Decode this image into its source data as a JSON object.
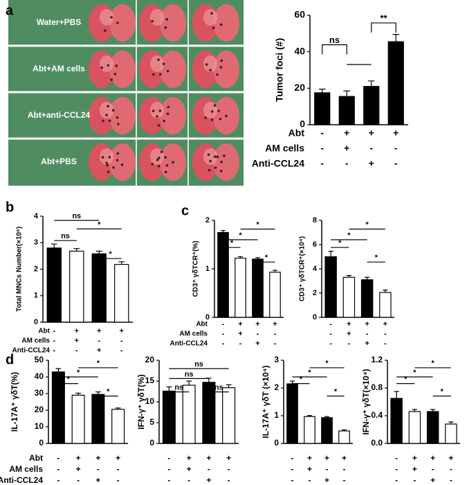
{
  "panel_labels": [
    "a",
    "b",
    "c",
    "d"
  ],
  "photo_labels": [
    "Water+PBS",
    "Abt+AM cells",
    "Abt+anti-CCL24",
    "Abt+PBS"
  ],
  "chart_data": [
    {
      "type": "bar",
      "ylabel": "Tumor foci (#)",
      "ylim": [
        0,
        60
      ],
      "yticks": [
        0,
        20,
        40,
        60
      ],
      "values": [
        17.5,
        15.5,
        21,
        45.5
      ],
      "errors": [
        2,
        3,
        3,
        4
      ],
      "colors": [
        "#000000",
        "#000000",
        "#000000",
        "#000000"
      ],
      "conditions": [
        {
          "name": "Abt",
          "signs": [
            "-",
            "+",
            "+",
            "+"
          ]
        },
        {
          "name": "AM cells",
          "signs": [
            "-",
            "+",
            "-",
            "-"
          ]
        },
        {
          "name": "Anti-CCL24",
          "signs": [
            "-",
            "-",
            "+",
            "-"
          ]
        }
      ],
      "annotations": [
        "ns",
        "**"
      ]
    },
    {
      "type": "bar",
      "ylabel": "Total MNCs Number(×10⁶)",
      "ylim": [
        0,
        4
      ],
      "yticks": [
        0,
        1,
        2,
        3,
        4
      ],
      "values": [
        2.8,
        2.68,
        2.58,
        2.18
      ],
      "errors": [
        0.15,
        0.1,
        0.1,
        0.1
      ],
      "colors": [
        "#000000",
        "#ffffff",
        "#000000",
        "#ffffff"
      ],
      "conditions": [
        {
          "name": "Abt",
          "signs": [
            "-",
            "+",
            "+",
            "+"
          ]
        },
        {
          "name": "AM cells",
          "signs": [
            "-",
            "+",
            "-",
            "-"
          ]
        },
        {
          "name": "Anti-CCL24",
          "signs": [
            "-",
            "-",
            "+",
            "-"
          ]
        }
      ],
      "annotations": [
        "ns",
        "*",
        "ns",
        "*"
      ]
    },
    {
      "type": "bar",
      "ylabel": "CD3⁺ γδTCR⁺(%)",
      "ylim": [
        0,
        2
      ],
      "yticks": [
        0,
        1,
        2
      ],
      "values": [
        1.75,
        1.22,
        1.2,
        0.93
      ],
      "errors": [
        0.04,
        0.03,
        0.03,
        0.04
      ],
      "colors": [
        "#000000",
        "#ffffff",
        "#000000",
        "#ffffff"
      ],
      "conditions": [
        {
          "name": "Abt",
          "signs": [
            "-",
            "+",
            "+",
            "+"
          ]
        },
        {
          "name": "AM cells",
          "signs": [
            "-",
            "+",
            "-",
            "-"
          ]
        },
        {
          "name": "Anti-CCL24",
          "signs": [
            "-",
            "-",
            "+",
            "-"
          ]
        }
      ],
      "annotations": [
        "*",
        "*",
        "*",
        "*"
      ]
    },
    {
      "type": "bar",
      "ylabel": "CD3⁺ γδTCR⁺(×10⁴)",
      "ylim": [
        0,
        8
      ],
      "yticks": [
        0,
        2,
        4,
        6,
        8
      ],
      "values": [
        5.0,
        3.3,
        3.1,
        2.05
      ],
      "errors": [
        0.45,
        0.15,
        0.2,
        0.2
      ],
      "colors": [
        "#000000",
        "#ffffff",
        "#000000",
        "#ffffff"
      ],
      "conditions": [
        {
          "signs": [
            "-",
            "+",
            "+",
            "+"
          ]
        },
        {
          "signs": [
            "-",
            "+",
            "-",
            "-"
          ]
        },
        {
          "signs": [
            "-",
            "-",
            "+",
            "-"
          ]
        }
      ],
      "annotations": [
        "*",
        "*",
        "*",
        "*"
      ]
    },
    {
      "type": "bar",
      "ylabel": "IL-17A⁺ γδT(%)",
      "ylim": [
        0,
        50
      ],
      "yticks": [
        0,
        10,
        20,
        30,
        40,
        50
      ],
      "values": [
        43,
        29,
        29.5,
        20.5
      ],
      "errors": [
        2,
        1.2,
        1.5,
        0.8
      ],
      "colors": [
        "#000000",
        "#ffffff",
        "#000000",
        "#ffffff"
      ],
      "conditions": [
        {
          "name": "Abt",
          "signs": [
            "-",
            "+",
            "+",
            "+"
          ]
        },
        {
          "name": "AM cells",
          "signs": [
            "-",
            "+",
            "-",
            "-"
          ]
        },
        {
          "name": "Anti-CCL24",
          "signs": [
            "-",
            "-",
            "+",
            "-"
          ]
        }
      ],
      "annotations": [
        "*",
        "*",
        "*",
        "*"
      ]
    },
    {
      "type": "bar",
      "ylabel": "IFN-γ⁺ γδT(%)",
      "ylim": [
        0,
        20
      ],
      "yticks": [
        0,
        5,
        10,
        15,
        20
      ],
      "values": [
        12.6,
        14,
        14.7,
        13.4
      ],
      "errors": [
        1,
        1,
        1,
        0.7
      ],
      "colors": [
        "#000000",
        "#ffffff",
        "#000000",
        "#ffffff"
      ],
      "conditions": [
        {
          "signs": [
            "-",
            "+",
            "+",
            "+"
          ]
        },
        {
          "signs": [
            "-",
            "+",
            "-",
            "-"
          ]
        },
        {
          "signs": [
            "-",
            "-",
            "+",
            "-"
          ]
        }
      ],
      "annotations": [
        "ns",
        "ns",
        "ns",
        "ns"
      ]
    },
    {
      "type": "bar",
      "ylabel": "IL-17A⁺ γδT (×10⁴)",
      "ylim": [
        0,
        3
      ],
      "yticks": [
        0,
        1,
        2,
        3
      ],
      "values": [
        2.15,
        0.97,
        0.93,
        0.45
      ],
      "errors": [
        0.1,
        0.04,
        0.04,
        0.04
      ],
      "colors": [
        "#000000",
        "#ffffff",
        "#000000",
        "#ffffff"
      ],
      "conditions": [
        {
          "signs": [
            "-",
            "+",
            "+",
            "+"
          ]
        },
        {
          "signs": [
            "-",
            "+",
            "-",
            "-"
          ]
        },
        {
          "signs": [
            "-",
            "-",
            "+",
            "-"
          ]
        }
      ],
      "annotations": [
        "*",
        "*",
        "*",
        "*"
      ]
    },
    {
      "type": "bar",
      "ylabel": "IFN-γ⁺ γδT(×10⁴)",
      "ylim": [
        0,
        1.2
      ],
      "yticks": [
        {
          "value": 0,
          "label": "0.0"
        },
        0.4,
        0.8,
        1.2
      ],
      "values": [
        0.65,
        0.46,
        0.46,
        0.28
      ],
      "errors": [
        0.1,
        0.03,
        0.03,
        0.03
      ],
      "colors": [
        "#000000",
        "#ffffff",
        "#000000",
        "#ffffff"
      ],
      "conditions": [
        {
          "signs": [
            "-",
            "+",
            "+",
            "+"
          ]
        },
        {
          "signs": [
            "-",
            "+",
            "-",
            "-"
          ]
        },
        {
          "signs": [
            "-",
            "-",
            "+",
            "-"
          ]
        }
      ],
      "annotations": [
        "*",
        "*",
        "*",
        "*"
      ]
    }
  ]
}
